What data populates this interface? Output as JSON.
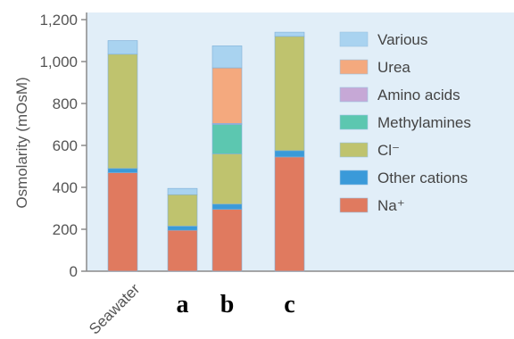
{
  "chart_data": {
    "type": "bar",
    "stacked": true,
    "ylabel": "Osmolarity (mOsM)",
    "ylim": [
      0,
      1200
    ],
    "yticks": [
      "0",
      "200",
      "400",
      "600",
      "800",
      "1,000",
      "1,200"
    ],
    "categories": [
      "Seawater",
      "a",
      "b",
      "c"
    ],
    "legend_position": "right",
    "series": [
      {
        "name": "Na⁺",
        "color": "#e07a5f",
        "values": [
          470,
          195,
          295,
          545
        ]
      },
      {
        "name": "Other cations",
        "color": "#3a9ad9",
        "values": [
          20,
          20,
          25,
          30
        ]
      },
      {
        "name": "Cl⁻",
        "color": "#bfc36e",
        "values": [
          545,
          150,
          240,
          545
        ]
      },
      {
        "name": "Methylamines",
        "color": "#5cc7b0",
        "values": [
          0,
          0,
          140,
          0
        ]
      },
      {
        "name": "Amino acids",
        "color": "#c6a8d6",
        "values": [
          0,
          0,
          5,
          0
        ]
      },
      {
        "name": "Urea",
        "color": "#f4a97e",
        "values": [
          0,
          0,
          265,
          0
        ]
      },
      {
        "name": "Various",
        "color": "#a9d3f0",
        "values": [
          65,
          30,
          105,
          20
        ]
      }
    ],
    "legend_order": [
      "Various",
      "Urea",
      "Amino acids",
      "Methylamines",
      "Cl⁻",
      "Other cations",
      "Na⁺"
    ]
  }
}
